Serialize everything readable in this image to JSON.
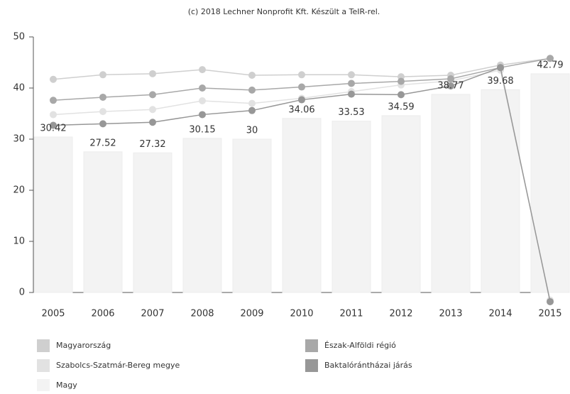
{
  "chart_data": {
    "type": "combo",
    "title": "(c) 2018 Lechner Nonprofit Kft. Készült a TeIR-rel.",
    "categories": [
      "2005",
      "2006",
      "2007",
      "2008",
      "2009",
      "2010",
      "2011",
      "2012",
      "2013",
      "2014",
      "2015"
    ],
    "ylim": [
      0,
      50
    ],
    "yticks": [
      0,
      10,
      20,
      30,
      40,
      50
    ],
    "series": [
      {
        "name": "Magyarország",
        "type": "line",
        "color": "#cfcfcf",
        "values": [
          41.7,
          42.6,
          42.8,
          43.6,
          42.5,
          42.6,
          42.6,
          42.2,
          42.5,
          44.5,
          45.8
        ]
      },
      {
        "name": "Szabolcs-Szatmár-Bereg megye",
        "type": "line",
        "color": "#e2e2e2",
        "values": [
          34.8,
          35.4,
          35.8,
          37.5,
          37,
          38,
          39.3,
          40.6,
          41.4,
          43.5,
          -1.5
        ]
      },
      {
        "name": "Magy",
        "type": "bar",
        "color": "#f3f3f3",
        "values": [
          30.42,
          27.52,
          27.32,
          30.15,
          30,
          34.06,
          33.53,
          34.59,
          38.77,
          39.68,
          42.79
        ]
      },
      {
        "name": "Észak-Alföldi régió",
        "type": "line",
        "color": "#a8a8a8",
        "values": [
          37.6,
          38.2,
          38.7,
          40,
          39.6,
          40.2,
          40.9,
          41.3,
          41.8,
          44,
          45.8
        ]
      },
      {
        "name": "Baktalórántházai járás",
        "type": "line",
        "color": "#979797",
        "values": [
          32.7,
          33,
          33.3,
          34.8,
          35.6,
          37.7,
          38.8,
          38.7,
          40.4,
          44,
          -1.8
        ]
      }
    ]
  }
}
